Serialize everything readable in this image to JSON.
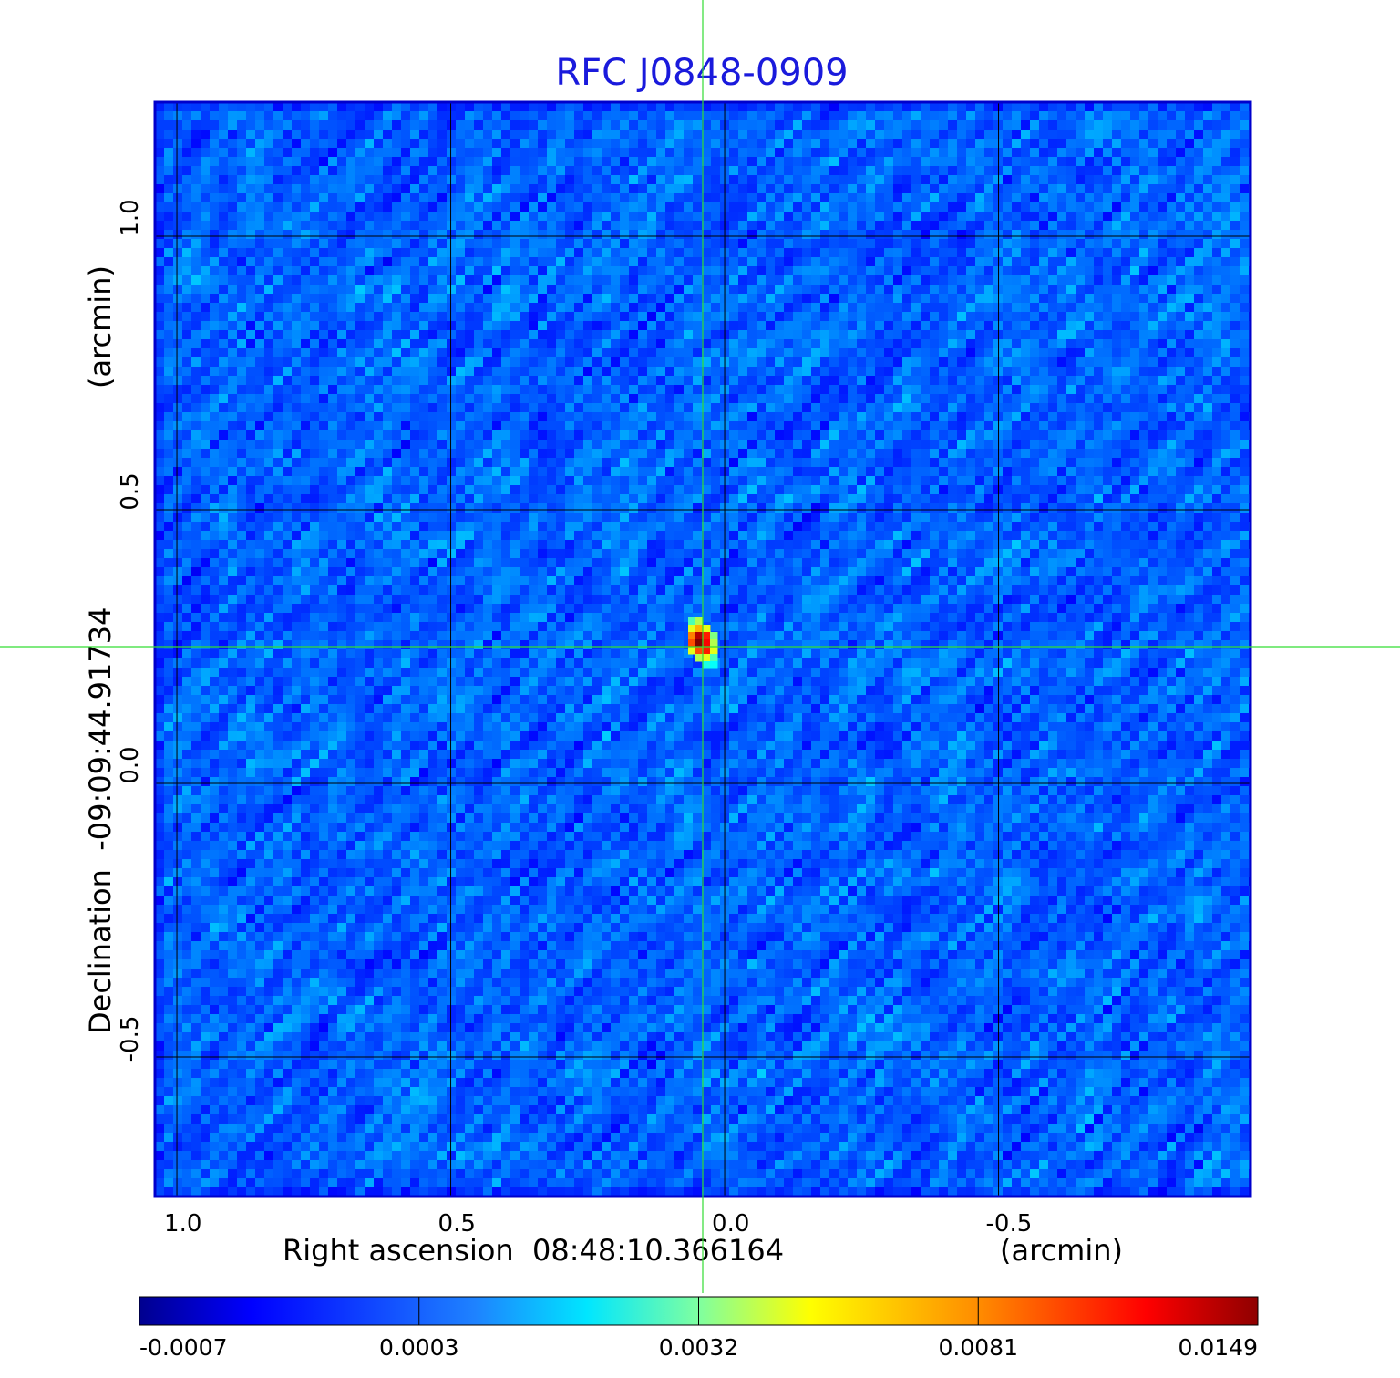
{
  "chart_data": {
    "type": "heatmap",
    "title": "RFC J0848-0909",
    "xlabel": "Right ascension  08:48:10.366164",
    "xunit": "(arcmin)",
    "ylabel": "Declination  -09:09:44.91734",
    "yunit": "(arcmin)",
    "x_ticks": [
      "1.0",
      "0.5",
      "0.0",
      "-0.5"
    ],
    "x_tick_values": [
      1.0,
      0.5,
      0.0,
      -0.5
    ],
    "y_ticks": [
      "1.0",
      "0.5",
      "0.0",
      "-0.5"
    ],
    "y_tick_values": [
      1.0,
      0.5,
      0.0,
      -0.5
    ],
    "xlim": [
      1.04,
      -0.96
    ],
    "ylim": [
      -0.755,
      1.245
    ],
    "grid": true,
    "colormap": "jet",
    "colorbar_ticks": [
      "-0.0007",
      "0.0003",
      "0.0032",
      "0.0081",
      "0.0149"
    ],
    "colorbar_range": [
      -0.0007,
      0.0149
    ],
    "source_position": [
      0.04,
      0.25
    ],
    "noise_level": 0.0003,
    "peak_value": 0.0149
  },
  "colors": {
    "title": "#1a1adc",
    "frame": "#0000cc",
    "grid": "#000000",
    "crosshair": "#33dd33",
    "background_noise": "#1e78f0"
  }
}
